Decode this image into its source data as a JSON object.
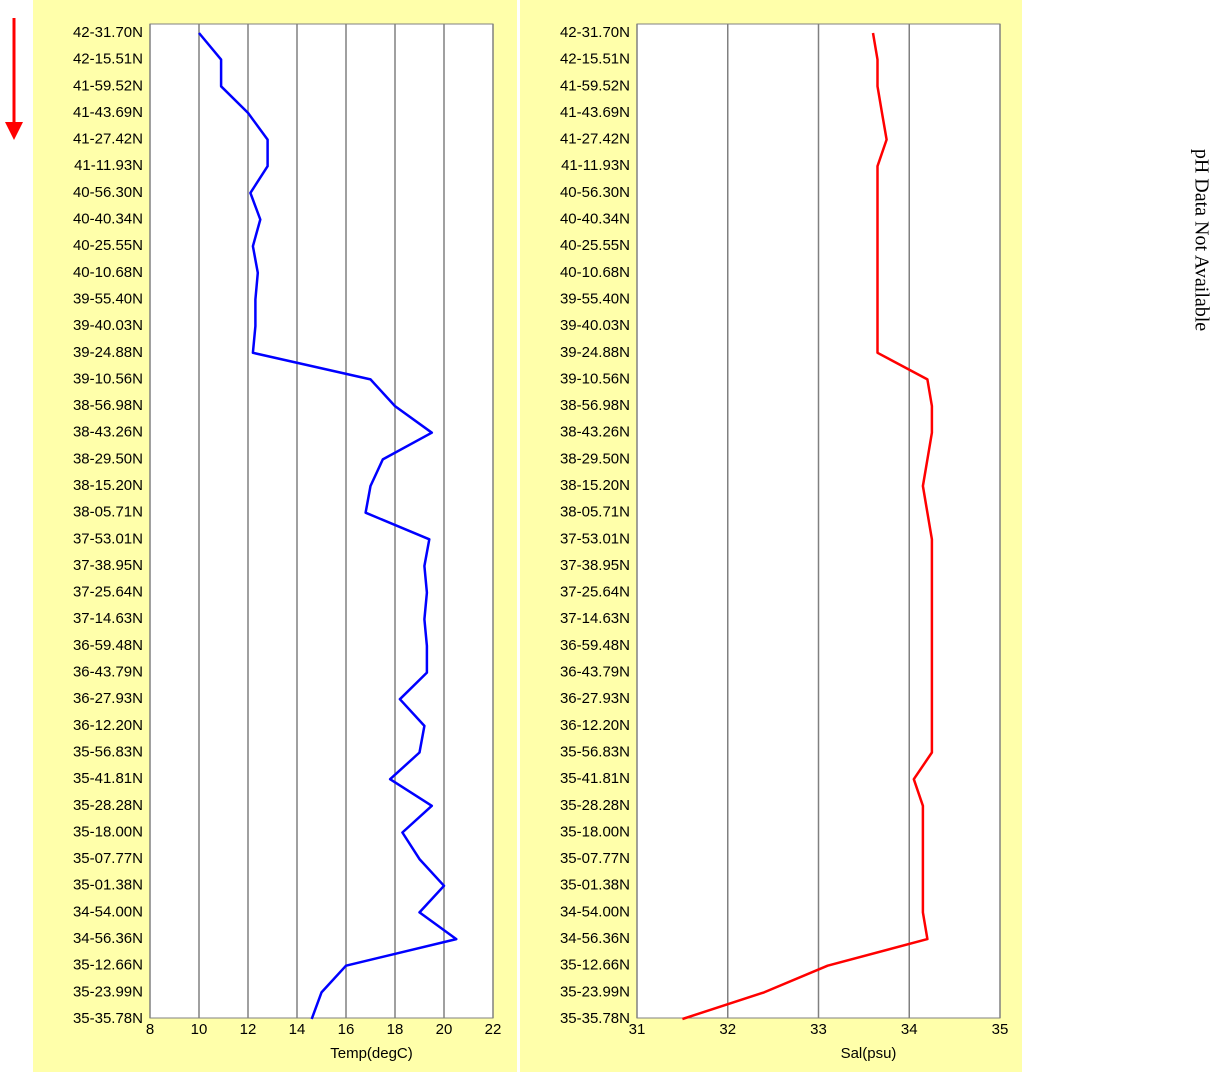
{
  "chart_data": [
    {
      "type": "line",
      "xlabel": "Temp(degC)",
      "color": "#0000ff",
      "categories": [
        "42-31.70N",
        "42-15.51N",
        "41-59.52N",
        "41-43.69N",
        "41-27.42N",
        "41-11.93N",
        "40-56.30N",
        "40-40.34N",
        "40-25.55N",
        "40-10.68N",
        "39-55.40N",
        "39-40.03N",
        "39-24.88N",
        "39-10.56N",
        "38-56.98N",
        "38-43.26N",
        "38-29.50N",
        "38-15.20N",
        "38-05.71N",
        "37-53.01N",
        "37-38.95N",
        "37-25.64N",
        "37-14.63N",
        "36-59.48N",
        "36-43.79N",
        "36-27.93N",
        "36-12.20N",
        "35-56.83N",
        "35-41.81N",
        "35-28.28N",
        "35-18.00N",
        "35-07.77N",
        "35-01.38N",
        "34-54.00N",
        "34-56.36N",
        "35-12.66N",
        "35-23.99N",
        "35-35.78N"
      ],
      "values": [
        10.0,
        10.9,
        10.9,
        12.0,
        12.8,
        12.8,
        12.1,
        12.5,
        12.2,
        12.4,
        12.3,
        12.3,
        12.2,
        17.0,
        18.0,
        19.5,
        17.5,
        17.0,
        16.8,
        19.4,
        19.2,
        19.3,
        19.2,
        19.3,
        19.3,
        18.2,
        19.2,
        19.0,
        17.8,
        19.5,
        18.3,
        19.0,
        20.0,
        19.0,
        20.5,
        16.0,
        15.0,
        14.6
      ],
      "xlim": [
        8,
        22
      ],
      "xticks": [
        8,
        10,
        12,
        14,
        16,
        18,
        20,
        22
      ],
      "grid": true
    },
    {
      "type": "line",
      "xlabel": "Sal(psu)",
      "color": "#ff0000",
      "categories": [
        "42-31.70N",
        "42-15.51N",
        "41-59.52N",
        "41-43.69N",
        "41-27.42N",
        "41-11.93N",
        "40-56.30N",
        "40-40.34N",
        "40-25.55N",
        "40-10.68N",
        "39-55.40N",
        "39-40.03N",
        "39-24.88N",
        "39-10.56N",
        "38-56.98N",
        "38-43.26N",
        "38-29.50N",
        "38-15.20N",
        "38-05.71N",
        "37-53.01N",
        "37-38.95N",
        "37-25.64N",
        "37-14.63N",
        "36-59.48N",
        "36-43.79N",
        "36-27.93N",
        "36-12.20N",
        "35-56.83N",
        "35-41.81N",
        "35-28.28N",
        "35-18.00N",
        "35-07.77N",
        "35-01.38N",
        "34-54.00N",
        "34-56.36N",
        "35-12.66N",
        "35-23.99N",
        "35-35.78N"
      ],
      "values": [
        33.6,
        33.65,
        33.65,
        33.7,
        33.75,
        33.65,
        33.65,
        33.65,
        33.65,
        33.65,
        33.65,
        33.65,
        33.65,
        34.2,
        34.25,
        34.25,
        34.2,
        34.15,
        34.2,
        34.25,
        34.25,
        34.25,
        34.25,
        34.25,
        34.25,
        34.25,
        34.25,
        34.25,
        34.05,
        34.15,
        34.15,
        34.15,
        34.15,
        34.15,
        34.2,
        33.1,
        32.4,
        31.5
      ],
      "xlim": [
        31,
        35
      ],
      "xticks": [
        31,
        32,
        33,
        34,
        35
      ],
      "grid": true
    }
  ],
  "ph_note": "pH Data Not Available"
}
